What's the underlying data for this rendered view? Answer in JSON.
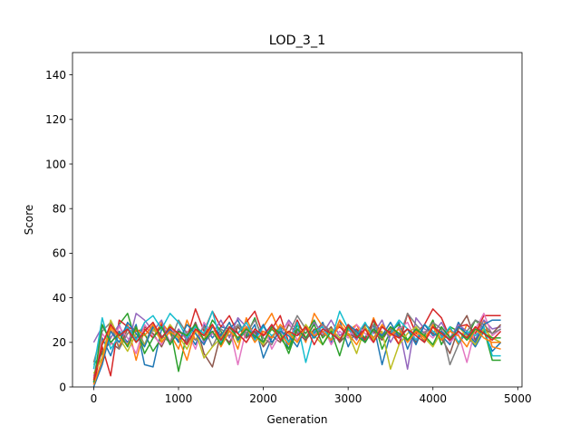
{
  "chart_data": {
    "type": "line",
    "title": "LOD_3_1",
    "xlabel": "Generation",
    "ylabel": "Score",
    "xlim": [
      -250,
      5050
    ],
    "ylim": [
      0,
      150
    ],
    "xticks": [
      0,
      1000,
      2000,
      3000,
      4000,
      5000
    ],
    "yticks": [
      0,
      20,
      40,
      60,
      80,
      100,
      120,
      140
    ],
    "grid": false,
    "legend": "none",
    "x": [
      0,
      100,
      200,
      300,
      400,
      500,
      600,
      700,
      800,
      900,
      1000,
      1100,
      1200,
      1300,
      1400,
      1500,
      1600,
      1700,
      1800,
      1900,
      2000,
      2100,
      2200,
      2300,
      2400,
      2500,
      2600,
      2700,
      2800,
      2900,
      3000,
      3100,
      3200,
      3300,
      3400,
      3500,
      3600,
      3700,
      3800,
      3900,
      4000,
      4100,
      4200,
      4300,
      4400,
      4500,
      4600,
      4700,
      4800
    ],
    "series": [
      {
        "color": "#1f77b4",
        "values": [
          2,
          22,
          14,
          25,
          20,
          28,
          10,
          9,
          26,
          24,
          21,
          25,
          19,
          28,
          22,
          27,
          26,
          30,
          22,
          28,
          13,
          22,
          27,
          17,
          26,
          22,
          24,
          29,
          20,
          30,
          18,
          26,
          22,
          28,
          10,
          24,
          29,
          17,
          26,
          20,
          28,
          23,
          19,
          29,
          23,
          18,
          25,
          16,
          20
        ]
      },
      {
        "color": "#ff7f0e",
        "values": [
          3,
          20,
          26,
          18,
          28,
          12,
          26,
          22,
          29,
          24,
          17,
          30,
          21,
          24,
          28,
          20,
          26,
          17,
          31,
          22,
          27,
          33,
          24,
          19,
          28,
          20,
          33,
          27,
          21,
          30,
          25,
          28,
          20,
          31,
          22,
          27,
          19,
          33,
          24,
          21,
          28,
          24,
          26,
          19,
          28,
          24,
          30,
          18,
          17
        ]
      },
      {
        "color": "#2ca02c",
        "values": [
          10,
          15,
          22,
          28,
          33,
          20,
          24,
          16,
          22,
          27,
          7,
          24,
          28,
          21,
          30,
          25,
          19,
          27,
          23,
          31,
          20,
          26,
          22,
          17,
          28,
          24,
          30,
          22,
          26,
          20,
          28,
          24,
          22,
          30,
          17,
          25,
          28,
          21,
          26,
          23,
          30,
          19,
          27,
          25,
          22,
          30,
          26,
          12,
          12
        ]
      },
      {
        "color": "#d62728",
        "values": [
          1,
          18,
          5,
          30,
          27,
          25,
          26,
          22,
          28,
          20,
          25,
          22,
          35,
          25,
          34,
          27,
          32,
          24,
          29,
          34,
          23,
          26,
          32,
          20,
          30,
          22,
          25,
          28,
          24,
          27,
          23,
          26,
          21,
          30,
          24,
          25,
          19,
          33,
          24,
          28,
          35,
          31,
          22,
          27,
          28,
          24,
          32,
          32,
          32
        ]
      },
      {
        "color": "#9467bd",
        "values": [
          20,
          27,
          22,
          28,
          18,
          33,
          30,
          25,
          30,
          19,
          26,
          21,
          29,
          20,
          24,
          30,
          22,
          31,
          27,
          24,
          20,
          28,
          23,
          30,
          25,
          21,
          29,
          24,
          30,
          23,
          26,
          21,
          28,
          24,
          30,
          20,
          27,
          8,
          31,
          26,
          24,
          29,
          22,
          28,
          25,
          21,
          30,
          26,
          27
        ]
      },
      {
        "color": "#8c564b",
        "values": [
          5,
          16,
          20,
          17,
          26,
          22,
          27,
          24,
          18,
          26,
          23,
          20,
          29,
          15,
          9,
          24,
          20,
          27,
          22,
          25,
          18,
          23,
          20,
          28,
          24,
          21,
          26,
          23,
          27,
          20,
          24,
          22,
          28,
          25,
          21,
          27,
          23,
          26,
          20,
          28,
          24,
          22,
          15,
          26,
          32,
          21,
          26,
          24,
          28
        ]
      },
      {
        "color": "#e377c2",
        "values": [
          4,
          24,
          19,
          27,
          22,
          15,
          28,
          23,
          19,
          27,
          22,
          25,
          17,
          29,
          24,
          20,
          27,
          10,
          26,
          22,
          28,
          17,
          24,
          29,
          21,
          26,
          23,
          28,
          19,
          25,
          22,
          28,
          24,
          20,
          27,
          23,
          26,
          29,
          21,
          25,
          22,
          27,
          20,
          24,
          11,
          26,
          33,
          23,
          26
        ]
      },
      {
        "color": "#7f7f7f",
        "values": [
          11,
          25,
          29,
          17,
          24,
          27,
          19,
          28,
          23,
          20,
          30,
          24,
          21,
          27,
          18,
          26,
          23,
          28,
          24,
          30,
          22,
          19,
          27,
          24,
          32,
          26,
          22,
          28,
          25,
          21,
          27,
          24,
          20,
          28,
          23,
          26,
          22,
          33,
          28,
          24,
          29,
          26,
          10,
          19,
          25,
          30,
          28,
          24,
          26
        ]
      },
      {
        "color": "#bcbd22",
        "values": [
          6,
          13,
          30,
          22,
          16,
          24,
          19,
          26,
          21,
          28,
          23,
          17,
          25,
          13,
          18,
          22,
          29,
          20,
          26,
          23,
          19,
          27,
          22,
          25,
          20,
          28,
          23,
          19,
          26,
          22,
          24,
          15,
          27,
          21,
          25,
          8,
          19,
          24,
          27,
          22,
          18,
          25,
          21,
          27,
          23,
          19,
          26,
          22,
          20
        ]
      },
      {
        "color": "#17becf",
        "values": [
          8,
          31,
          17,
          23,
          27,
          21,
          29,
          32,
          26,
          33,
          29,
          22,
          27,
          24,
          34,
          20,
          27,
          24,
          29,
          21,
          27,
          23,
          26,
          20,
          29,
          11,
          25,
          27,
          21,
          34,
          26,
          23,
          29,
          22,
          27,
          24,
          30,
          26,
          21,
          28,
          25,
          22,
          27,
          20,
          25,
          23,
          27,
          14,
          14
        ]
      },
      {
        "color": "#1f77b4",
        "values": [
          0,
          10,
          25,
          20,
          29,
          24,
          18,
          27,
          22,
          26,
          20,
          28,
          24,
          19,
          27,
          23,
          29,
          21,
          26,
          22,
          28,
          20,
          25,
          23,
          18,
          27,
          22,
          26,
          24,
          21,
          28,
          25,
          20,
          26,
          23,
          29,
          22,
          26,
          19,
          28,
          23,
          25,
          21,
          27,
          24,
          20,
          28,
          30,
          30
        ]
      },
      {
        "color": "#ff7f0e",
        "values": [
          1,
          12,
          27,
          22,
          19,
          26,
          23,
          28,
          20,
          25,
          22,
          12,
          26,
          21,
          28,
          18,
          25,
          22,
          27,
          20,
          25,
          22,
          28,
          24,
          20,
          27,
          23,
          25,
          21,
          28,
          24,
          19,
          26,
          22,
          28,
          23,
          26,
          20,
          25,
          22,
          27,
          21,
          25,
          23,
          18,
          26,
          22,
          20,
          20
        ]
      },
      {
        "color": "#2ca02c",
        "values": [
          2,
          28,
          20,
          24,
          18,
          27,
          15,
          22,
          27,
          19,
          25,
          23,
          28,
          21,
          25,
          19,
          27,
          22,
          26,
          23,
          20,
          27,
          24,
          15,
          26,
          22,
          28,
          19,
          25,
          14,
          27,
          23,
          20,
          26,
          22,
          27,
          24,
          21,
          26,
          23,
          19,
          27,
          22,
          25,
          21,
          26,
          24,
          22,
          22
        ]
      },
      {
        "color": "#d62728",
        "values": [
          3,
          19,
          28,
          23,
          26,
          20,
          25,
          29,
          22,
          27,
          24,
          19,
          26,
          23,
          28,
          21,
          27,
          24,
          20,
          26,
          23,
          28,
          21,
          25,
          23,
          27,
          19,
          26,
          24,
          21,
          28,
          22,
          26,
          20,
          27,
          24,
          22,
          26,
          23,
          20,
          27,
          24,
          21,
          25,
          22,
          27,
          24,
          21,
          25
        ]
      }
    ]
  }
}
